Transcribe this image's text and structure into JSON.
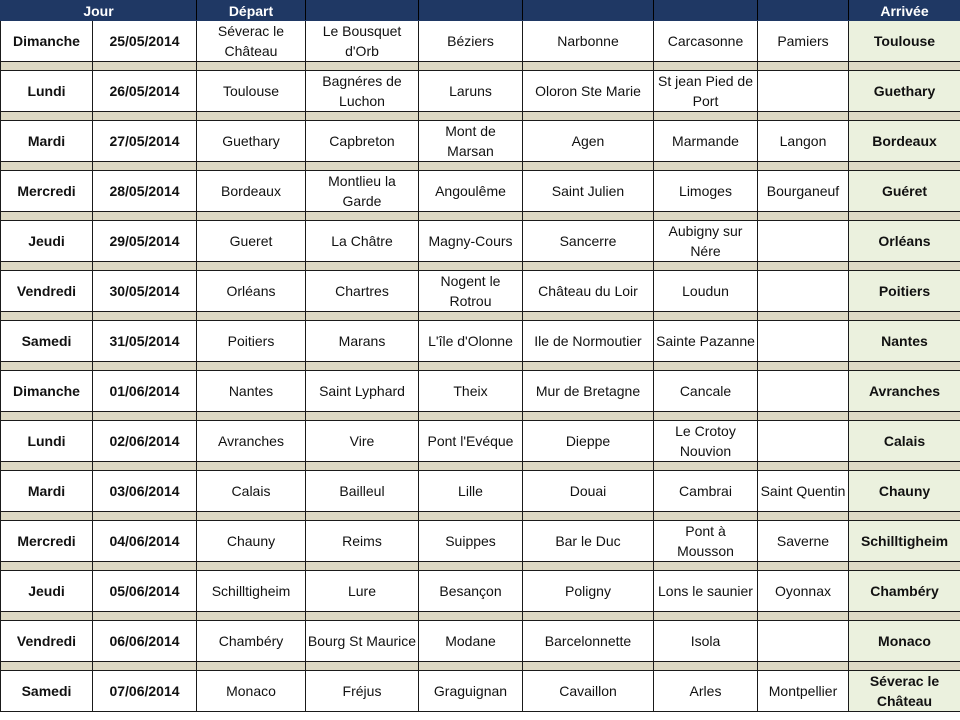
{
  "header": {
    "jour": "Jour",
    "depart": "Départ",
    "arrivee": "Arrivée"
  },
  "colors": {
    "header_bg": "#1f3864",
    "spacer": "#ddd9c4",
    "arrival_bg": "#ebf1de"
  },
  "rows": [
    {
      "day": "Dimanche",
      "date": "25/05/2014",
      "stops": [
        "Séverac le Château",
        "Le Bousquet d'Orb",
        "Béziers",
        "Narbonne",
        "Carcasonne",
        "Pamiers"
      ],
      "arrival": "Toulouse"
    },
    {
      "day": "Lundi",
      "date": "26/05/2014",
      "stops": [
        "Toulouse",
        "Bagnéres de Luchon",
        "Laruns",
        "Oloron Ste Marie",
        "St jean Pied de Port",
        ""
      ],
      "arrival": "Guethary"
    },
    {
      "day": "Mardi",
      "date": "27/05/2014",
      "stops": [
        "Guethary",
        "Capbreton",
        "Mont de Marsan",
        "Agen",
        "Marmande",
        "Langon"
      ],
      "arrival": "Bordeaux"
    },
    {
      "day": "Mercredi",
      "date": "28/05/2014",
      "stops": [
        "Bordeaux",
        "Montlieu la Garde",
        "Angoulême",
        "Saint Julien",
        "Limoges",
        "Bourganeuf"
      ],
      "arrival": "Guéret"
    },
    {
      "day": "Jeudi",
      "date": "29/05/2014",
      "stops": [
        "Gueret",
        "La Châtre",
        "Magny-Cours",
        "Sancerre",
        "Aubigny sur Nére",
        ""
      ],
      "arrival": "Orléans"
    },
    {
      "day": "Vendredi",
      "date": "30/05/2014",
      "stops": [
        "Orléans",
        "Chartres",
        "Nogent le Rotrou",
        "Château du Loir",
        "Loudun",
        ""
      ],
      "arrival": "Poitiers"
    },
    {
      "day": "Samedi",
      "date": "31/05/2014",
      "stops": [
        "Poitiers",
        "Marans",
        "L'île d'Olonne",
        "Ile de Normoutier",
        "Sainte Pazanne",
        ""
      ],
      "arrival": "Nantes"
    },
    {
      "day": "Dimanche",
      "date": "01/06/2014",
      "stops": [
        "Nantes",
        "Saint Lyphard",
        "Theix",
        "Mur de Bretagne",
        "Cancale",
        ""
      ],
      "arrival": "Avranches"
    },
    {
      "day": "Lundi",
      "date": "02/06/2014",
      "stops": [
        "Avranches",
        "Vire",
        "Pont l'Evéque",
        "Dieppe",
        "Le Crotoy Nouvion",
        ""
      ],
      "arrival": "Calais"
    },
    {
      "day": "Mardi",
      "date": "03/06/2014",
      "stops": [
        "Calais",
        "Bailleul",
        "Lille",
        "Douai",
        "Cambrai",
        "Saint Quentin"
      ],
      "arrival": "Chauny"
    },
    {
      "day": "Mercredi",
      "date": "04/06/2014",
      "stops": [
        "Chauny",
        "Reims",
        "Suippes",
        "Bar le Duc",
        "Pont à Mousson",
        "Saverne"
      ],
      "arrival": "Schilltigheim"
    },
    {
      "day": "Jeudi",
      "date": "05/06/2014",
      "stops": [
        "Schilltigheim",
        "Lure",
        "Besançon",
        "Poligny",
        "Lons le saunier",
        "Oyonnax"
      ],
      "arrival": "Chambéry"
    },
    {
      "day": "Vendredi",
      "date": "06/06/2014",
      "stops": [
        "Chambéry",
        "Bourg St Maurice",
        "Modane",
        "Barcelonnette",
        "Isola",
        ""
      ],
      "arrival": "Monaco"
    },
    {
      "day": "Samedi",
      "date": "07/06/2014",
      "stops": [
        "Monaco",
        "Fréjus",
        "Graguignan",
        "Cavaillon",
        "Arles",
        "Montpellier"
      ],
      "arrival": "Séverac le Château"
    }
  ]
}
